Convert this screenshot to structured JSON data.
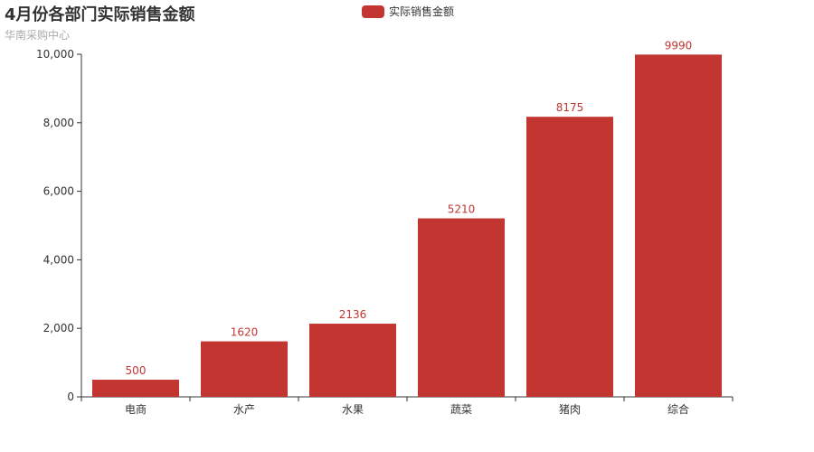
{
  "title": "4月份各部门实际销售金额",
  "subtitle": "华南采购中心",
  "legend": {
    "label": "实际销售金额",
    "color": "#c23531",
    "position": "top-center"
  },
  "chart_data": {
    "type": "bar",
    "categories": [
      "电商",
      "水产",
      "水果",
      "蔬菜",
      "猪肉",
      "综合"
    ],
    "series": [
      {
        "name": "实际销售金额",
        "values": [
          500,
          1620,
          2136,
          5210,
          8175,
          9990
        ],
        "color": "#c23531"
      }
    ],
    "ylim": [
      0,
      10000
    ],
    "yticks": [
      "0",
      "2,000",
      "4,000",
      "6,000",
      "8,000",
      "10,000"
    ],
    "xlabel": "",
    "ylabel": "",
    "grid": false,
    "data_labels": true
  }
}
